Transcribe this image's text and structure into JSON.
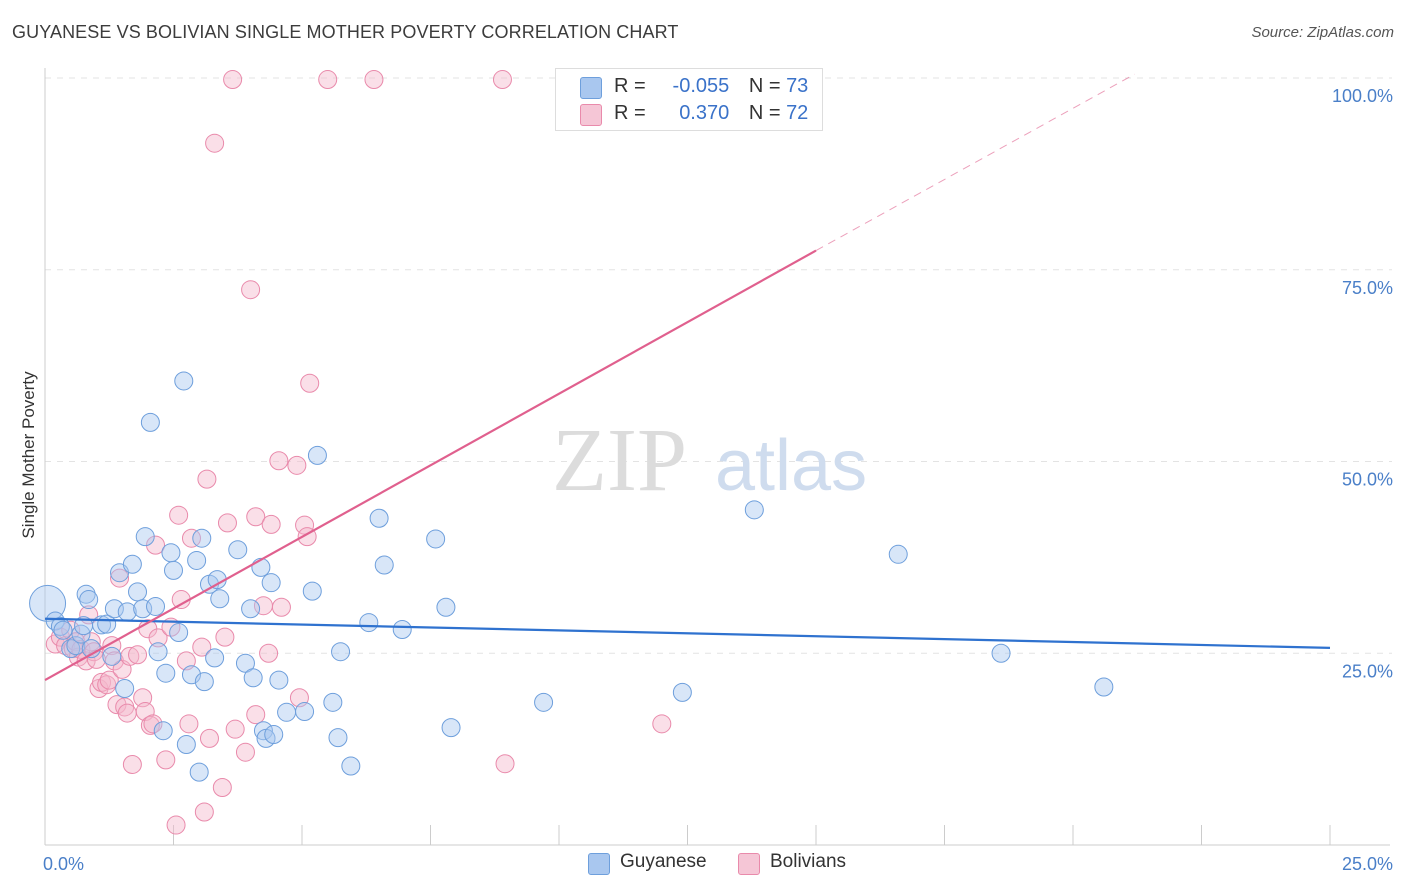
{
  "title": "GUYANESE VS BOLIVIAN SINGLE MOTHER POVERTY CORRELATION CHART",
  "source": "Source: ZipAtlas.com",
  "watermark": {
    "zip": "ZIP",
    "atlas": "atlas"
  },
  "legend": {
    "rows": [
      {
        "r_label": "R =",
        "r_value": "-0.055",
        "n_label": "N =",
        "n_value": "73"
      },
      {
        "r_label": "R =",
        "r_value": "0.370",
        "n_label": "N =",
        "n_value": "72"
      }
    ]
  },
  "bottom_legend": [
    {
      "label": "Guyanese"
    },
    {
      "label": "Bolivians"
    }
  ],
  "colors": {
    "guyanese_fill": "#a9c7ef",
    "guyanese_stroke": "#6e9fdc",
    "guyanese_line": "#2f72cf",
    "bolivian_fill": "#f5b9cd",
    "bolivian_stroke": "#e98aab",
    "bolivian_line": "#e0608e",
    "tick_text": "#4a7fc8",
    "grid": "#e3e3e3"
  },
  "chart_data": {
    "type": "scatter",
    "title": "GUYANESE VS BOLIVIAN SINGLE MOTHER POVERTY CORRELATION CHART",
    "xlabel": "",
    "ylabel": "Single Mother Poverty",
    "xlim": [
      0,
      25
    ],
    "ylim": [
      0,
      100
    ],
    "x_ticks": [
      "0.0%",
      "25.0%"
    ],
    "y_ticks": [
      {
        "value": 25,
        "label": "25.0%"
      },
      {
        "value": 50,
        "label": "50.0%"
      },
      {
        "value": 75,
        "label": "75.0%"
      },
      {
        "value": 100,
        "label": "100.0%"
      }
    ],
    "grid": true,
    "series": [
      {
        "name": "Guyanese",
        "R": -0.055,
        "N": 73,
        "trend": {
          "x": [
            0,
            25
          ],
          "y": [
            29.5,
            25.7
          ]
        },
        "points": [
          [
            0.05,
            31.5,
            1
          ],
          [
            0.2,
            29.2,
            0
          ],
          [
            0.3,
            28.5,
            0
          ],
          [
            0.35,
            28.0,
            0
          ],
          [
            0.5,
            25.6,
            0
          ],
          [
            0.6,
            26.0,
            0
          ],
          [
            0.7,
            27.5,
            0
          ],
          [
            0.75,
            28.6,
            0
          ],
          [
            0.8,
            32.7,
            0
          ],
          [
            0.85,
            32.0,
            0
          ],
          [
            0.9,
            25.6,
            0
          ],
          [
            1.1,
            28.7,
            0
          ],
          [
            1.2,
            28.8,
            0
          ],
          [
            1.3,
            24.6,
            0
          ],
          [
            1.35,
            30.8,
            0
          ],
          [
            1.45,
            35.5,
            0
          ],
          [
            1.55,
            20.4,
            0
          ],
          [
            1.6,
            30.4,
            0
          ],
          [
            1.7,
            36.6,
            0
          ],
          [
            1.8,
            33.0,
            0
          ],
          [
            1.9,
            30.8,
            0
          ],
          [
            1.95,
            40.2,
            0
          ],
          [
            2.05,
            55.1,
            0
          ],
          [
            2.15,
            31.1,
            0
          ],
          [
            2.2,
            25.2,
            0
          ],
          [
            2.3,
            14.9,
            0
          ],
          [
            2.35,
            22.4,
            0
          ],
          [
            2.45,
            38.1,
            0
          ],
          [
            2.5,
            35.8,
            0
          ],
          [
            2.6,
            27.7,
            0
          ],
          [
            2.7,
            60.5,
            0
          ],
          [
            2.75,
            13.1,
            0
          ],
          [
            2.85,
            22.2,
            0
          ],
          [
            2.95,
            37.1,
            0
          ],
          [
            3.0,
            9.5,
            0
          ],
          [
            3.05,
            40.0,
            0
          ],
          [
            3.1,
            21.3,
            0
          ],
          [
            3.2,
            34.0,
            0
          ],
          [
            3.3,
            24.4,
            0
          ],
          [
            3.35,
            34.6,
            0
          ],
          [
            3.4,
            32.1,
            0
          ],
          [
            3.75,
            38.5,
            0
          ],
          [
            3.9,
            23.7,
            0
          ],
          [
            4.0,
            30.8,
            0
          ],
          [
            4.05,
            21.8,
            0
          ],
          [
            4.2,
            36.2,
            0
          ],
          [
            4.25,
            14.9,
            0
          ],
          [
            4.3,
            13.9,
            0
          ],
          [
            4.4,
            34.2,
            0
          ],
          [
            4.45,
            14.4,
            0
          ],
          [
            4.55,
            21.5,
            0
          ],
          [
            4.7,
            17.3,
            0
          ],
          [
            5.05,
            17.4,
            0
          ],
          [
            5.2,
            33.1,
            0
          ],
          [
            5.3,
            50.8,
            0
          ],
          [
            5.6,
            18.6,
            0
          ],
          [
            5.7,
            14.0,
            0
          ],
          [
            5.75,
            25.2,
            0
          ],
          [
            5.95,
            10.3,
            0
          ],
          [
            6.3,
            29.0,
            0
          ],
          [
            6.5,
            42.6,
            0
          ],
          [
            6.6,
            36.5,
            0
          ],
          [
            6.95,
            28.1,
            0
          ],
          [
            7.6,
            39.9,
            0
          ],
          [
            7.8,
            31.0,
            0
          ],
          [
            7.9,
            15.3,
            0
          ],
          [
            9.7,
            18.6,
            0
          ],
          [
            12.4,
            19.9,
            0
          ],
          [
            13.8,
            43.7,
            0
          ],
          [
            16.6,
            37.9,
            0
          ],
          [
            18.6,
            25.0,
            0
          ],
          [
            20.6,
            20.6,
            0
          ]
        ]
      },
      {
        "name": "Bolivians",
        "R": 0.37,
        "N": 72,
        "trend": {
          "x": [
            0,
            15
          ],
          "y": [
            21.5,
            77.5
          ]
        },
        "trend_dashed": {
          "x": [
            15,
            21.2
          ],
          "y": [
            77.5,
            100.5
          ]
        },
        "points": [
          [
            0.2,
            26.2,
            0
          ],
          [
            0.3,
            27.1,
            0
          ],
          [
            0.4,
            26.0,
            0
          ],
          [
            0.5,
            28.0,
            0
          ],
          [
            0.55,
            25.6,
            0
          ],
          [
            0.6,
            26.5,
            0
          ],
          [
            0.65,
            24.5,
            0
          ],
          [
            0.7,
            25.5,
            0
          ],
          [
            0.8,
            24.0,
            0
          ],
          [
            0.85,
            30.0,
            0
          ],
          [
            0.9,
            26.5,
            0
          ],
          [
            0.95,
            25.2,
            0
          ],
          [
            1.0,
            24.2,
            0
          ],
          [
            1.05,
            20.4,
            0
          ],
          [
            1.1,
            21.2,
            0
          ],
          [
            1.2,
            20.9,
            0
          ],
          [
            1.25,
            21.5,
            0
          ],
          [
            1.3,
            26.0,
            0
          ],
          [
            1.35,
            24.0,
            0
          ],
          [
            1.4,
            18.3,
            0
          ],
          [
            1.45,
            34.8,
            0
          ],
          [
            1.5,
            22.9,
            0
          ],
          [
            1.55,
            18.0,
            0
          ],
          [
            1.6,
            17.2,
            0
          ],
          [
            1.65,
            24.6,
            0
          ],
          [
            1.7,
            10.5,
            0
          ],
          [
            1.8,
            24.8,
            0
          ],
          [
            1.9,
            19.2,
            0
          ],
          [
            1.95,
            17.4,
            0
          ],
          [
            2.0,
            28.2,
            0
          ],
          [
            2.05,
            15.6,
            0
          ],
          [
            2.1,
            15.8,
            0
          ],
          [
            2.15,
            39.1,
            0
          ],
          [
            2.2,
            27.0,
            0
          ],
          [
            2.35,
            11.1,
            0
          ],
          [
            2.45,
            28.4,
            0
          ],
          [
            2.55,
            2.6,
            0
          ],
          [
            2.6,
            43.0,
            0
          ],
          [
            2.65,
            32.0,
            0
          ],
          [
            2.75,
            24.0,
            0
          ],
          [
            2.8,
            15.8,
            0
          ],
          [
            2.85,
            40.0,
            0
          ],
          [
            3.05,
            25.8,
            0
          ],
          [
            3.1,
            4.3,
            0
          ],
          [
            3.15,
            47.7,
            0
          ],
          [
            3.2,
            13.9,
            0
          ],
          [
            3.3,
            91.5,
            0
          ],
          [
            3.45,
            7.5,
            0
          ],
          [
            3.5,
            27.1,
            0
          ],
          [
            3.55,
            42.0,
            0
          ],
          [
            3.65,
            99.8,
            0
          ],
          [
            3.7,
            15.1,
            0
          ],
          [
            3.9,
            12.1,
            0
          ],
          [
            4.0,
            72.4,
            0
          ],
          [
            4.1,
            42.8,
            0
          ],
          [
            4.1,
            17.0,
            0
          ],
          [
            4.25,
            31.2,
            0
          ],
          [
            4.35,
            25.0,
            0
          ],
          [
            4.4,
            41.8,
            0
          ],
          [
            4.55,
            50.1,
            0
          ],
          [
            4.6,
            31.0,
            0
          ],
          [
            4.9,
            49.5,
            0
          ],
          [
            4.95,
            19.2,
            0
          ],
          [
            5.05,
            41.7,
            0
          ],
          [
            5.1,
            40.2,
            0
          ],
          [
            5.15,
            60.2,
            0
          ],
          [
            5.5,
            99.8,
            0
          ],
          [
            6.4,
            99.8,
            0
          ],
          [
            8.9,
            99.8,
            0
          ],
          [
            8.95,
            10.6,
            0
          ],
          [
            12.0,
            15.8,
            0
          ]
        ]
      }
    ]
  }
}
